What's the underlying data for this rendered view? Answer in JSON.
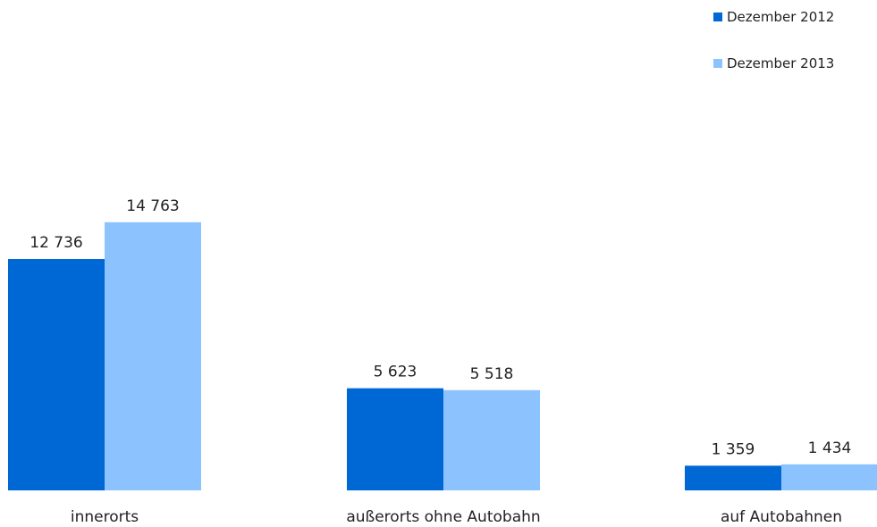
{
  "chart_data": {
    "type": "bar",
    "categories": [
      "innerorts",
      "außerorts ohne Autobahn",
      "auf Autobahnen"
    ],
    "series": [
      {
        "name": "Dezember 2012",
        "values": [
          12736,
          5623,
          1359
        ],
        "labels": [
          "12 736",
          "5 623",
          "1 359"
        ],
        "color": "#0068d5"
      },
      {
        "name": "Dezember 2013",
        "values": [
          14763,
          5518,
          1434
        ],
        "labels": [
          "14 763",
          "5 518",
          "1 434"
        ],
        "color": "#8cc3ff"
      }
    ],
    "ylim": [
      0,
      20000
    ],
    "grid": false,
    "legend_position": "top-right"
  }
}
